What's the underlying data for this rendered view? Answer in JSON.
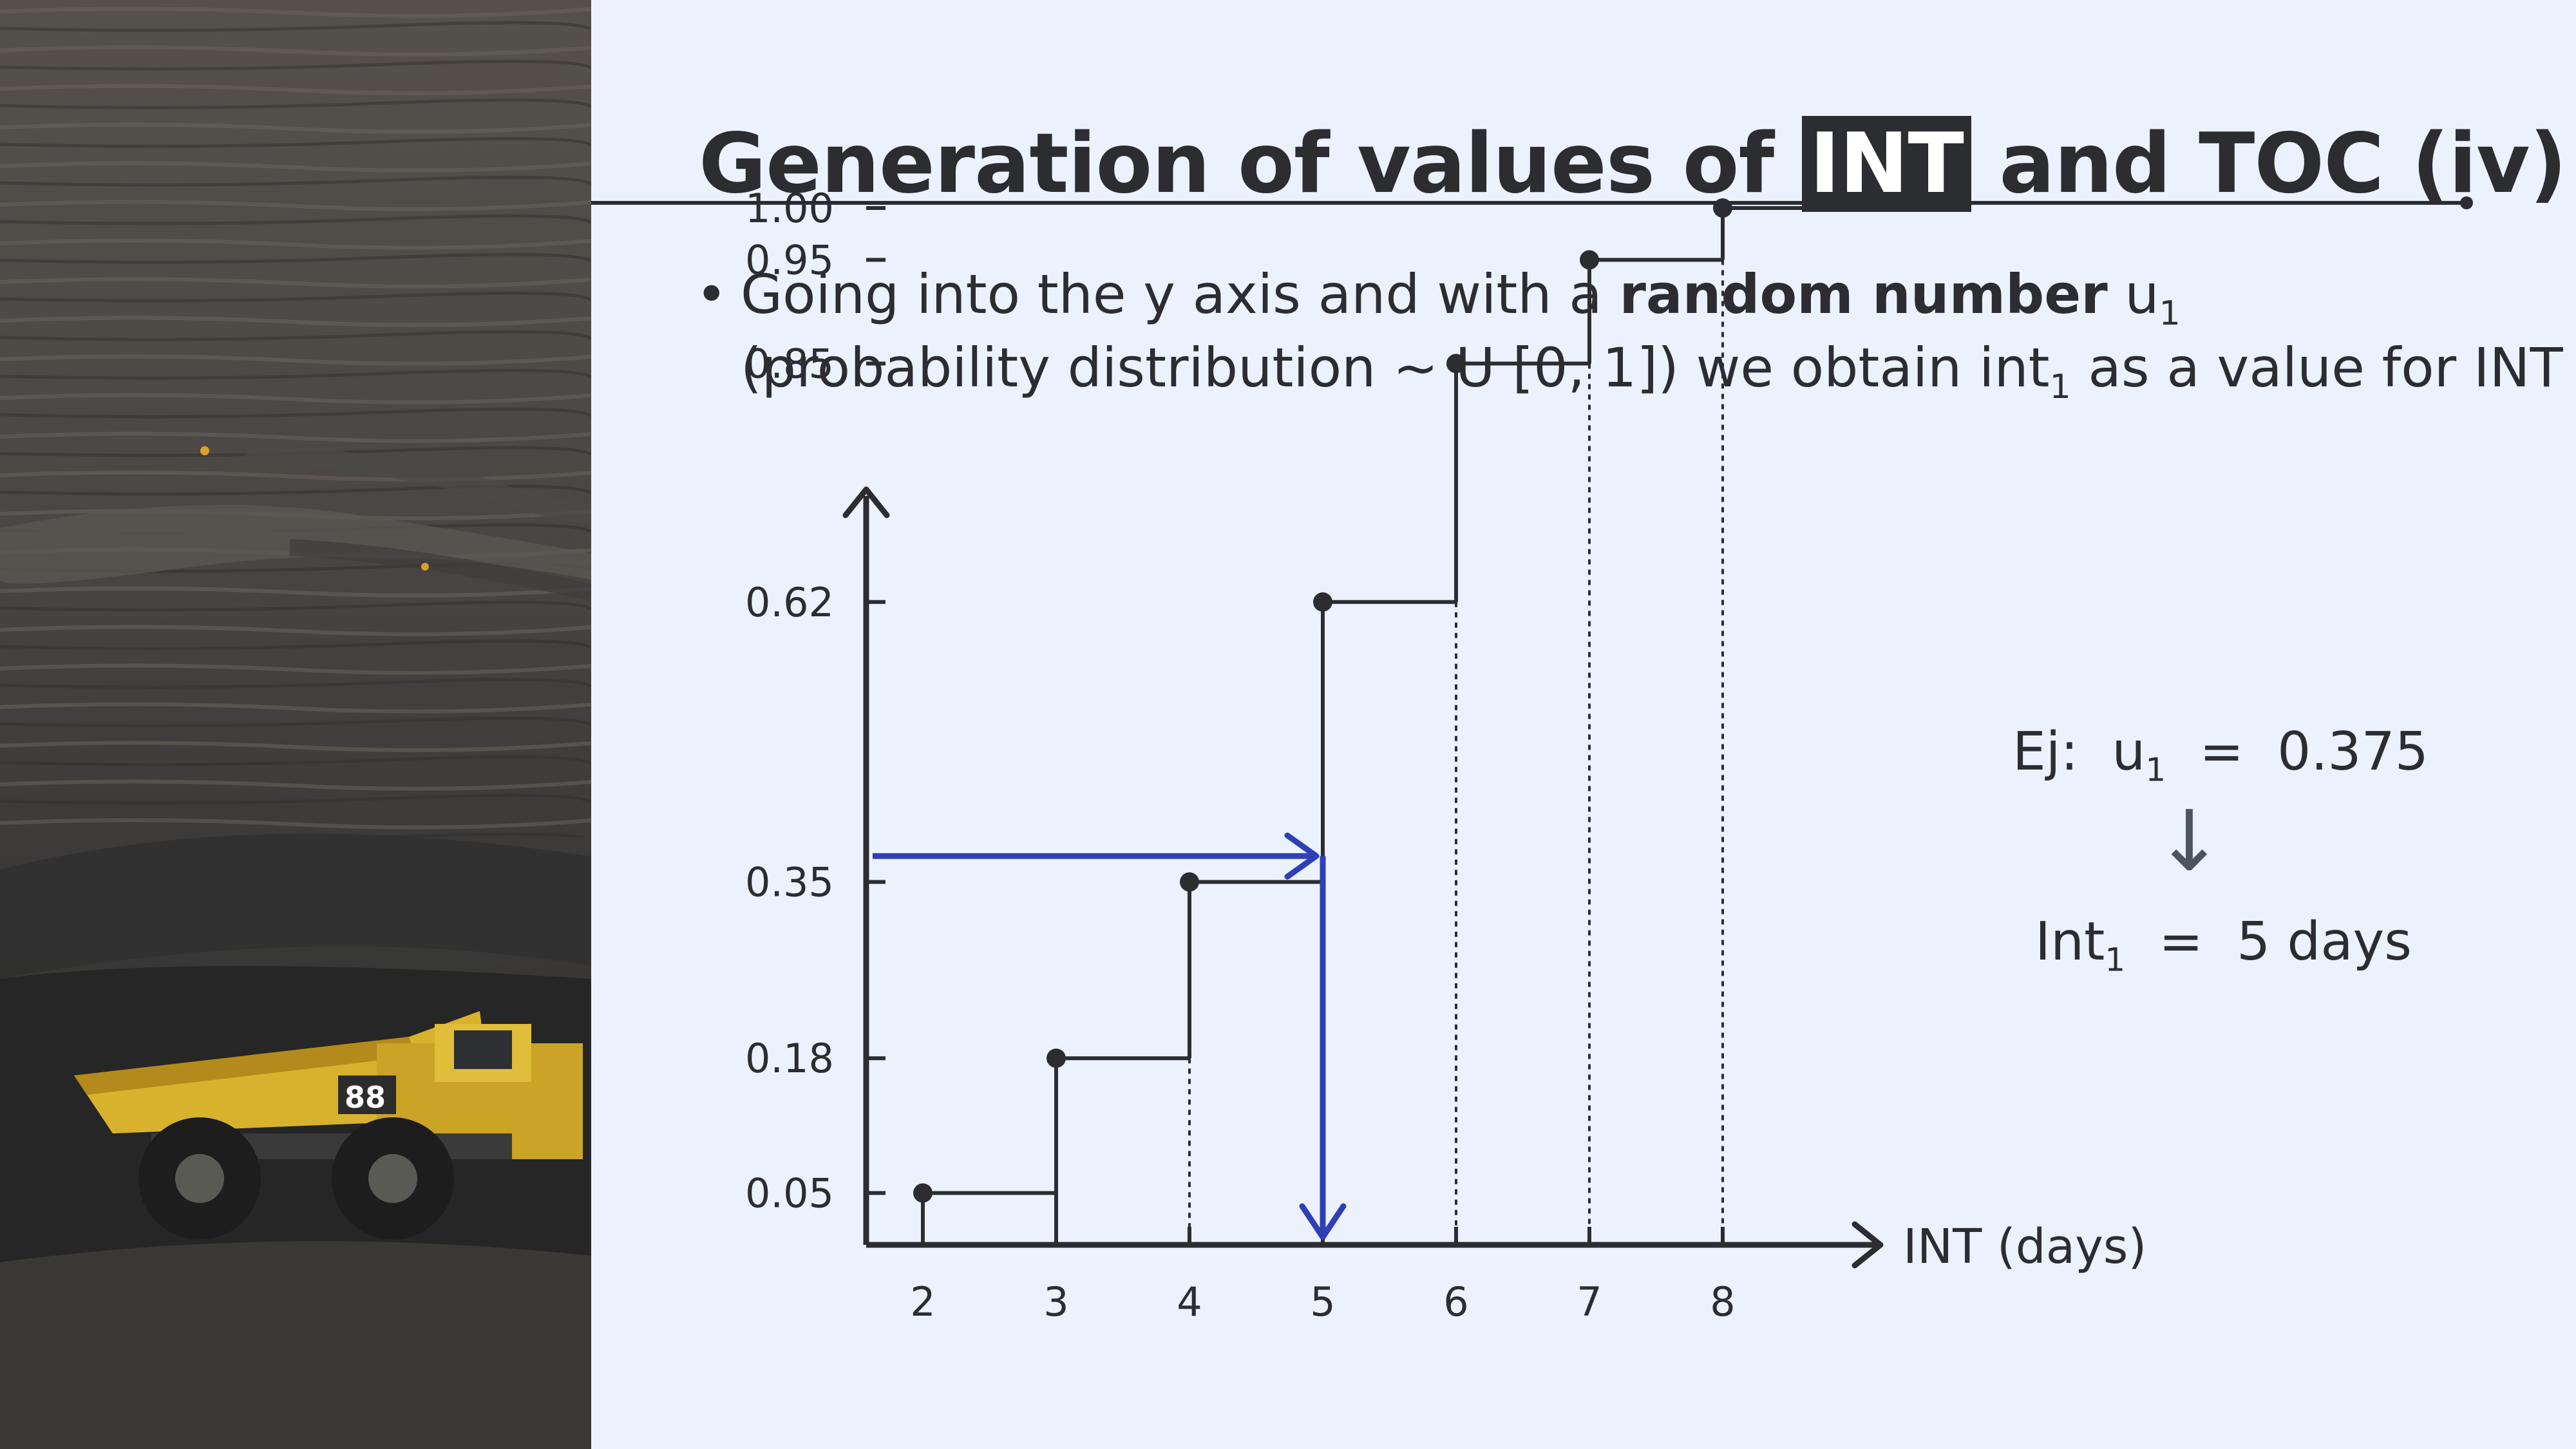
{
  "slide": {
    "title_prefix": "Generation of values of ",
    "title_highlight": "INT",
    "title_suffix": " and TOC (iv)",
    "bullet_symbol": "•",
    "bullet_line1_text": "Going into the y axis and with a ",
    "bullet_line1_bold": "random number",
    "bullet_line1_var": " u",
    "bullet_line1_sub": "1",
    "bullet_line2_text": "(probability distribution ~ U [0, 1]) we obtain int",
    "bullet_line2_sub": "1",
    "bullet_line2_end": " as a value for INT"
  },
  "example": {
    "prefix": "Ej:",
    "var": "u",
    "var_sub": "1",
    "eq": "=",
    "value": "0.375",
    "arrow": "↓",
    "result_var": "Int",
    "result_sub": "1",
    "result_value": "5 days"
  },
  "colors": {
    "background": "#ebf2fe",
    "ink": "#2b2d31",
    "highlight_arrow": "#2f3fb7"
  },
  "chart_data": {
    "type": "step",
    "xlabel": "INT (days)",
    "ylabel": "",
    "x_ticks": [
      "2",
      "3",
      "4",
      "5",
      "6",
      "7",
      "8"
    ],
    "y_ticks": [
      "0.05",
      "0.18",
      "0.35",
      "0.62",
      "0.85",
      "0.95",
      "1.00"
    ],
    "xlim": [
      1.6,
      9.2
    ],
    "ylim": [
      0,
      1.09
    ],
    "points": [
      {
        "x": 2,
        "y": 0.05
      },
      {
        "x": 3,
        "y": 0.18
      },
      {
        "x": 4,
        "y": 0.35
      },
      {
        "x": 5,
        "y": 0.62
      },
      {
        "x": 6,
        "y": 0.85
      },
      {
        "x": 7,
        "y": 0.95
      },
      {
        "x": 8,
        "y": 1.0
      }
    ],
    "step_end_x": 9.2,
    "dotted_drops": [
      4,
      6,
      7,
      8
    ],
    "lookup": {
      "u": 0.375,
      "result_x": 5
    }
  }
}
